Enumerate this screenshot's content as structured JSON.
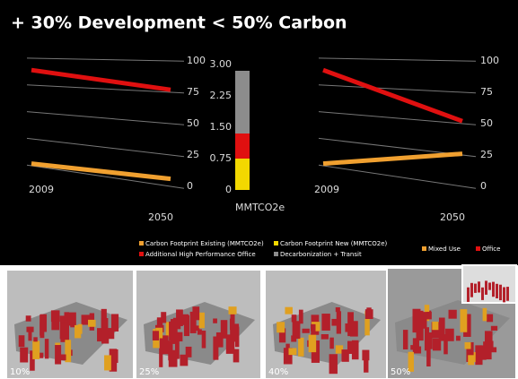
{
  "title": "+ 30% Development < 50% Carbon",
  "chart_data": [
    {
      "type": "line",
      "x": [
        "2009",
        "2050"
      ],
      "ylim": [
        0,
        100
      ],
      "yticks": [
        0,
        25,
        50,
        75,
        100
      ],
      "series": [
        {
          "name": "Mixed Use",
          "color": "#f0a030",
          "values": [
            2,
            6
          ]
        },
        {
          "name": "Office",
          "color": "#e01010",
          "values": [
            89,
            77
          ]
        }
      ]
    },
    {
      "type": "bar",
      "y_label": "MMTCO2e",
      "ylim": [
        0,
        3
      ],
      "yticks": [
        0,
        {
          "value": 0.75,
          "label": "0.75"
        },
        {
          "value": 1.5,
          "label": "1.50"
        },
        {
          "value": 2.25,
          "label": "2.25"
        },
        {
          "value": 3,
          "label": "3.00"
        }
      ],
      "extra_legend": [
        {
          "name": "Carbon Footprint Existing (MMTCO2e)",
          "color": "#f0a030"
        }
      ],
      "series": [
        {
          "name": "Carbon Footprint New (MMTCO2e)",
          "color": "#f2d800",
          "values": [
            0.75
          ]
        },
        {
          "name": "Additional High Performance Office",
          "color": "#e01010",
          "values": [
            0.6
          ]
        },
        {
          "name": "Decarbonization + Transit",
          "color": "#8c8c8c",
          "values": [
            1.5
          ]
        }
      ]
    },
    {
      "type": "line",
      "x": [
        "2009",
        "2050"
      ],
      "ylim": [
        0,
        100
      ],
      "yticks": [
        0,
        25,
        50,
        75,
        100
      ],
      "series": [
        {
          "name": "Mixed Use",
          "color": "#f0a030",
          "values": [
            2,
            26
          ]
        },
        {
          "name": "Office",
          "color": "#e01010",
          "values": [
            89,
            52
          ]
        }
      ]
    }
  ],
  "thumbnails": [
    {
      "label": "10%"
    },
    {
      "label": "25%"
    },
    {
      "label": "40%"
    },
    {
      "label": "50%"
    }
  ]
}
